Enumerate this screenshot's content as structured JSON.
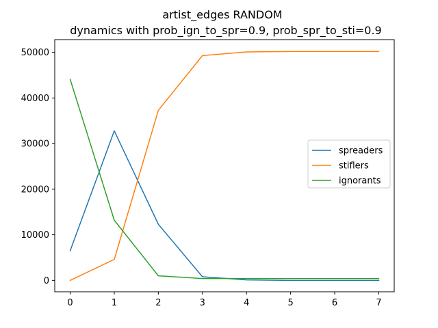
{
  "chart_data": {
    "type": "line",
    "title": "artist_edges RANDOM",
    "subtitle": "dynamics with prob_ign_to_spr=0.9, prob_spr_to_sti=0.9",
    "xlabel": "",
    "ylabel": "",
    "x": [
      0,
      1,
      2,
      3,
      4,
      5,
      6,
      7
    ],
    "xlim": [
      -0.35,
      7.35
    ],
    "ylim": [
      -2500,
      52800
    ],
    "xticks": [
      "0",
      "1",
      "2",
      "3",
      "4",
      "5",
      "6",
      "7"
    ],
    "yticks": [
      0,
      10000,
      20000,
      30000,
      40000,
      50000
    ],
    "grid": false,
    "legend_position": "center-right",
    "series": [
      {
        "name": "spreaders",
        "color": "#1f77b4",
        "values": [
          6500,
          32800,
          12300,
          800,
          100,
          0,
          0,
          0
        ]
      },
      {
        "name": "stiflers",
        "color": "#ff7f0e",
        "values": [
          0,
          4600,
          37300,
          49300,
          50100,
          50200,
          50200,
          50200
        ]
      },
      {
        "name": "ignorants",
        "color": "#2ca02c",
        "values": [
          44100,
          13200,
          1000,
          400,
          400,
          400,
          400,
          400
        ]
      }
    ]
  }
}
